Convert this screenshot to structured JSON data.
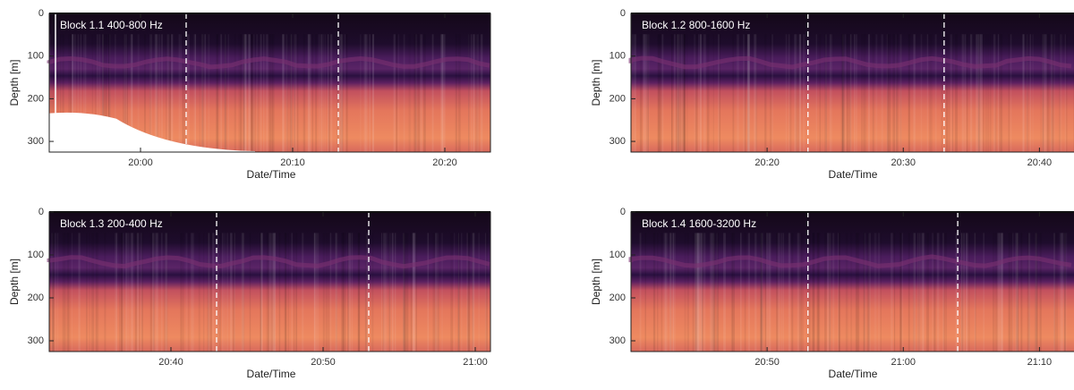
{
  "chart_data": [
    {
      "type": "echogram",
      "title": "Block 1.1 400-800 Hz",
      "xlabel": "Date/Time",
      "ylabel": "Depth [m]",
      "xlim": [
        "19:54",
        "20:23"
      ],
      "xticks": [
        "20:00",
        "20:10",
        "20:20"
      ],
      "markers": [
        "20:03",
        "20:13"
      ],
      "ylim": [
        0,
        325
      ],
      "yticks": [
        0,
        100,
        200,
        300
      ],
      "y_inverted": true
    },
    {
      "type": "echogram",
      "title": "Block 1.2 800-1600 Hz",
      "xlabel": "Date/Time",
      "ylabel": "Depth [m]",
      "xlim": [
        "20:10",
        "20:43"
      ],
      "xticks": [
        "20:20",
        "20:30",
        "20:40"
      ],
      "markers": [
        "20:23",
        "20:33"
      ],
      "ylim": [
        0,
        325
      ],
      "yticks": [
        0,
        100,
        200,
        300
      ],
      "y_inverted": true
    },
    {
      "type": "echogram",
      "title": "Block 1.3 200-400 Hz",
      "xlabel": "Date/Time",
      "ylabel": "Depth [m]",
      "xlim": [
        "20:32",
        "21:01"
      ],
      "xticks": [
        "20:40",
        "20:50",
        "21:00"
      ],
      "markers": [
        "20:43",
        "20:53"
      ],
      "ylim": [
        0,
        325
      ],
      "yticks": [
        0,
        100,
        200,
        300
      ],
      "y_inverted": true
    },
    {
      "type": "echogram",
      "title": "Block 1.4 1600-3200 Hz",
      "xlabel": "Date/Time",
      "ylabel": "Depth [m]",
      "xlim": [
        "20:40",
        "21:13"
      ],
      "xticks": [
        "20:50",
        "21:00",
        "21:10"
      ],
      "markers": [
        "20:53",
        "21:04"
      ],
      "ylim": [
        0,
        325
      ],
      "yticks": [
        0,
        100,
        200,
        300
      ],
      "y_inverted": true
    }
  ]
}
